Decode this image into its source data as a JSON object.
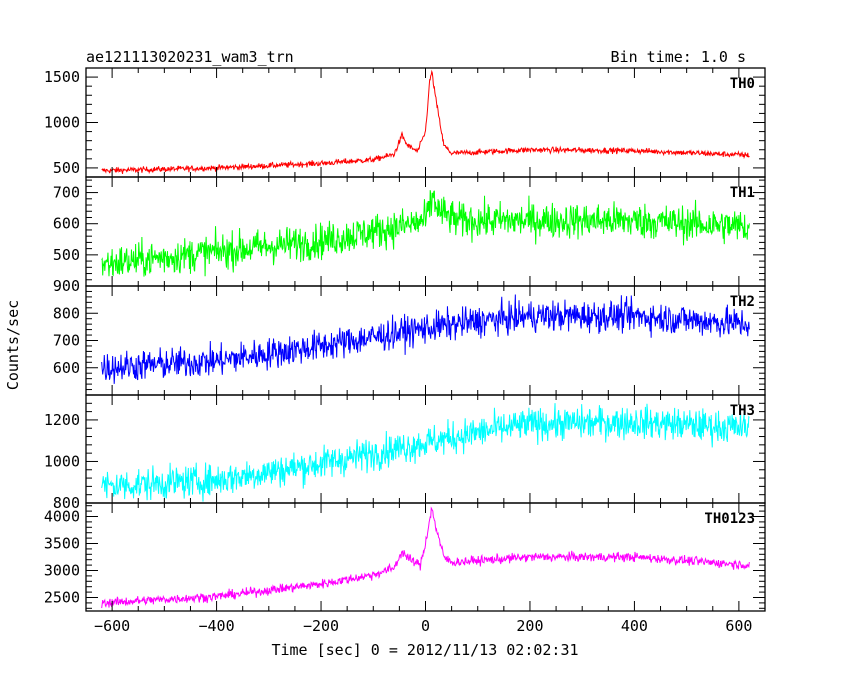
{
  "header": {
    "left": "ae121113020231_wam3_trn",
    "right": "Bin time: 1.0 s"
  },
  "chart_data": {
    "type": "line",
    "xlabel": "Time [sec] 0 = 2012/11/13 02:02:31",
    "ylabel": "Counts/sec",
    "xlim": [
      -650,
      650
    ],
    "x_range_data": [
      -620,
      620
    ],
    "bin_time_s": 1.0,
    "x_ticks": [
      -600,
      -400,
      -200,
      0,
      200,
      400,
      600
    ],
    "x_tick_labels": [
      "−600",
      "−400",
      "−200",
      "0",
      "200",
      "400",
      "600"
    ],
    "panels": [
      {
        "label": "TH0",
        "color": "#ff0000",
        "ylim": [
          400,
          1600
        ],
        "y_ticks": [
          500,
          1000,
          1500
        ],
        "y_tick_labels": [
          "500",
          "1000",
          "1500"
        ],
        "trend": [
          [
            -620,
            470
          ],
          [
            -400,
            500
          ],
          [
            -200,
            550
          ],
          [
            -100,
            590
          ],
          [
            -60,
            650
          ],
          [
            -45,
            860
          ],
          [
            -35,
            750
          ],
          [
            -15,
            680
          ],
          [
            0,
            900
          ],
          [
            8,
            1450
          ],
          [
            12,
            1560
          ],
          [
            20,
            1250
          ],
          [
            35,
            750
          ],
          [
            50,
            660
          ],
          [
            200,
            700
          ],
          [
            400,
            690
          ],
          [
            620,
            640
          ]
        ],
        "noise": 22
      },
      {
        "label": "TH1",
        "color": "#00ff00",
        "ylim": [
          400,
          750
        ],
        "y_ticks": [
          500,
          600,
          700
        ],
        "y_tick_labels": [
          "500",
          "600",
          "700"
        ],
        "trend": [
          [
            -620,
            470
          ],
          [
            -400,
            510
          ],
          [
            -200,
            545
          ],
          [
            -50,
            590
          ],
          [
            0,
            610
          ],
          [
            8,
            650
          ],
          [
            15,
            690
          ],
          [
            25,
            640
          ],
          [
            60,
            610
          ],
          [
            200,
            610
          ],
          [
            400,
            610
          ],
          [
            620,
            590
          ]
        ],
        "noise": 40
      },
      {
        "label": "TH2",
        "color": "#0000ff",
        "ylim": [
          500,
          900
        ],
        "y_ticks": [
          600,
          700,
          800,
          900
        ],
        "y_tick_labels": [
          "600",
          "700",
          "800",
          "900"
        ],
        "trend": [
          [
            -620,
            600
          ],
          [
            -400,
            625
          ],
          [
            -200,
            680
          ],
          [
            0,
            745
          ],
          [
            100,
            770
          ],
          [
            200,
            790
          ],
          [
            400,
            790
          ],
          [
            620,
            760
          ]
        ],
        "noise": 40
      },
      {
        "label": "TH3",
        "color": "#00ffff",
        "ylim": [
          800,
          1320
        ],
        "y_ticks": [
          800,
          1000,
          1200
        ],
        "y_tick_labels": [
          "800",
          "1000",
          "1200"
        ],
        "trend": [
          [
            -620,
            880
          ],
          [
            -400,
            910
          ],
          [
            -200,
            990
          ],
          [
            0,
            1090
          ],
          [
            100,
            1140
          ],
          [
            200,
            1180
          ],
          [
            400,
            1190
          ],
          [
            620,
            1160
          ]
        ],
        "noise": 55
      },
      {
        "label": "TH0123",
        "color": "#ff00ff",
        "ylim": [
          2250,
          4250
        ],
        "y_ticks": [
          2500,
          3000,
          3500,
          4000
        ],
        "y_tick_labels": [
          "2500",
          "3000",
          "3500",
          "4000"
        ],
        "trend": [
          [
            -620,
            2400
          ],
          [
            -400,
            2520
          ],
          [
            -200,
            2750
          ],
          [
            -100,
            2920
          ],
          [
            -60,
            3050
          ],
          [
            -45,
            3350
          ],
          [
            -30,
            3200
          ],
          [
            -10,
            3100
          ],
          [
            0,
            3500
          ],
          [
            8,
            3950
          ],
          [
            12,
            4150
          ],
          [
            20,
            3800
          ],
          [
            35,
            3250
          ],
          [
            50,
            3150
          ],
          [
            200,
            3250
          ],
          [
            400,
            3250
          ],
          [
            620,
            3100
          ]
        ],
        "noise": 60
      }
    ]
  }
}
